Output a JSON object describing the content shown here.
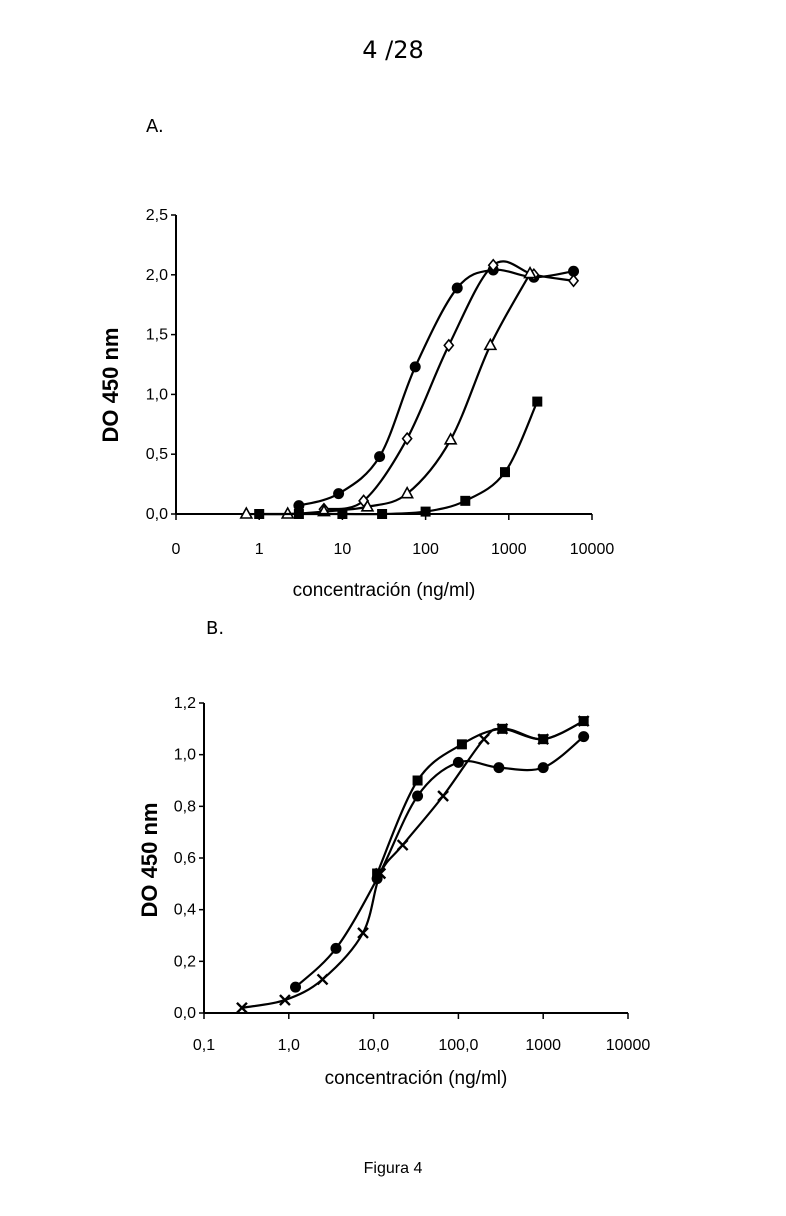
{
  "page_number": "4 /28",
  "caption": "Figura 4",
  "chart_data": [
    {
      "panel_label": "A.",
      "type": "scatter",
      "xlabel": "concentración (ng/ml)",
      "ylabel": "DO 450 nm",
      "x_ticks": [
        "0",
        "1",
        "10",
        "100",
        "1000",
        "10000"
      ],
      "y_ticks": [
        "0,0",
        "0,5",
        "1,0",
        "1,5",
        "2,0",
        "2,5"
      ],
      "ylim": [
        0,
        2.5
      ],
      "xscale": "log",
      "grid": false,
      "series": [
        {
          "marker": "circle-filled",
          "x": [
            3,
            9,
            28,
            75,
            240,
            650,
            2000,
            6000
          ],
          "y": [
            0.07,
            0.17,
            0.48,
            1.23,
            1.89,
            2.04,
            1.98,
            2.03
          ]
        },
        {
          "marker": "diamond-open",
          "x": [
            6,
            18,
            60,
            190,
            650,
            2000,
            6000
          ],
          "y": [
            0.04,
            0.11,
            0.63,
            1.41,
            2.08,
            2.0,
            1.95
          ]
        },
        {
          "marker": "triangle-open",
          "x": [
            0.7,
            2.2,
            6,
            20,
            60,
            200,
            600,
            1800
          ],
          "y": [
            0.0,
            0.0,
            0.02,
            0.06,
            0.17,
            0.62,
            1.41,
            2.01
          ]
        },
        {
          "marker": "square-filled",
          "x": [
            1,
            3,
            10,
            30,
            100,
            300,
            900,
            2200
          ],
          "y": [
            0.0,
            0.0,
            0.0,
            0.0,
            0.02,
            0.11,
            0.35,
            0.94
          ]
        }
      ]
    },
    {
      "panel_label": "B.",
      "type": "scatter",
      "xlabel": "concentración (ng/ml)",
      "ylabel": "DO 450 nm",
      "x_ticks": [
        "0,1",
        "1,0",
        "10,0",
        "100,0",
        "1000",
        "10000"
      ],
      "y_ticks": [
        "0,0",
        "0,2",
        "0,4",
        "0,6",
        "0,8",
        "1,0",
        "1,2"
      ],
      "ylim": [
        0,
        1.2
      ],
      "xscale": "log",
      "grid": false,
      "series": [
        {
          "marker": "circle-filled",
          "x": [
            1.2,
            3.6,
            11,
            33,
            100,
            300,
            1000,
            3000
          ],
          "y": [
            0.1,
            0.25,
            0.52,
            0.84,
            0.97,
            0.95,
            0.95,
            1.07
          ]
        },
        {
          "marker": "square-filled",
          "x": [
            11,
            33,
            110,
            330,
            1000,
            3000
          ],
          "y": [
            0.54,
            0.9,
            1.04,
            1.1,
            1.06,
            1.13
          ]
        },
        {
          "marker": "cross",
          "x": [
            0.28,
            0.9,
            2.5,
            7.5,
            12,
            22,
            66,
            200,
            330,
            1000,
            3000
          ],
          "y": [
            0.02,
            0.05,
            0.13,
            0.31,
            0.54,
            0.65,
            0.84,
            1.06,
            1.1,
            1.06,
            1.13
          ]
        }
      ]
    }
  ]
}
